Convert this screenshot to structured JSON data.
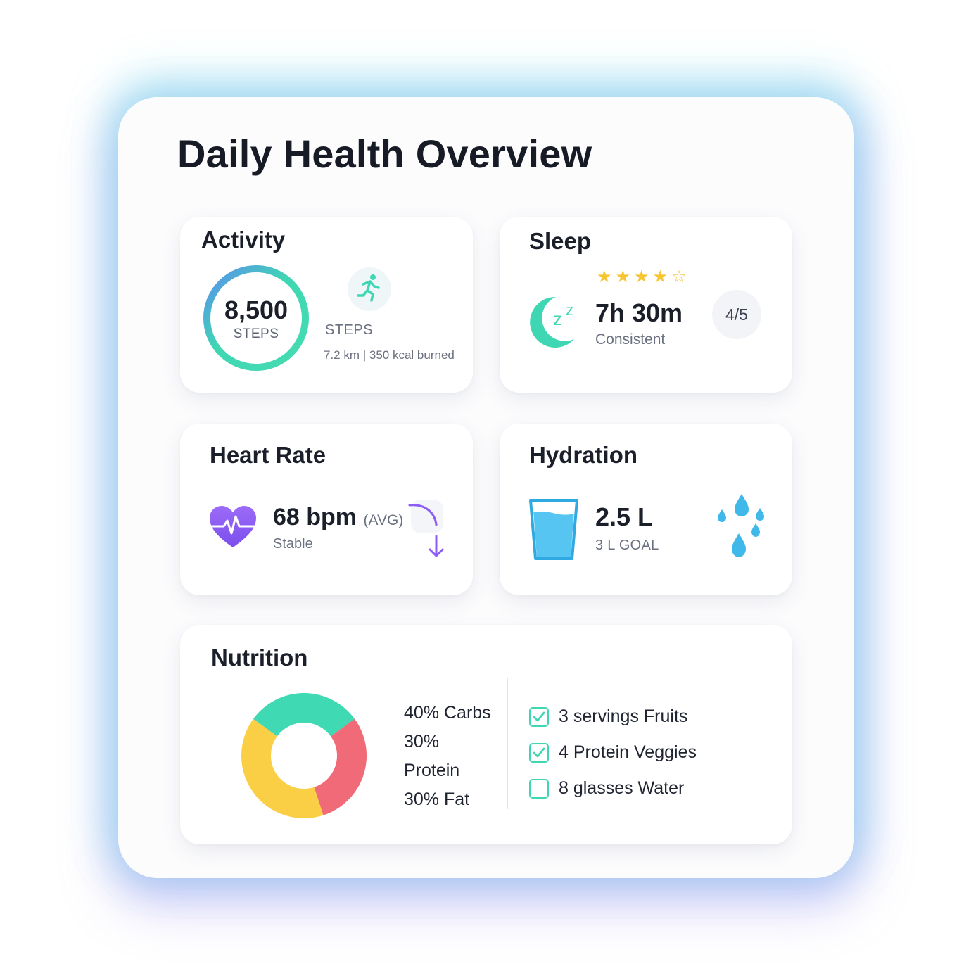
{
  "page": {
    "title": "Daily Health Overview"
  },
  "activity": {
    "title": "Activity",
    "steps_value": "8,500",
    "steps_unit": "STEPS",
    "steps_label": "STEPS",
    "meta": "7.2 km | 350 kcal burned",
    "icon": "running-person-icon"
  },
  "sleep": {
    "title": "Sleep",
    "duration": "7h 30m",
    "quality": "Consistent",
    "score": "4/5",
    "rating": 4,
    "rating_max": 5,
    "icon": "moon-zz-icon"
  },
  "heart": {
    "title": "Heart Rate",
    "value": "68 bpm",
    "avg_label": "(AVG)",
    "status": "Stable",
    "icon": "heart-pulse-icon",
    "trend_icon": "trend-down-arrow-icon"
  },
  "hydration": {
    "title": "Hydration",
    "value": "2.5 L",
    "goal": "3 L GOAL",
    "fill_fraction": 0.83,
    "icon": "water-glass-icon"
  },
  "nutrition": {
    "title": "Nutrition",
    "legend_lines": [
      "40% Carbs",
      "30%",
      "Protein",
      "30% Fat"
    ],
    "checklist": [
      {
        "label": "3 servings Fruits",
        "checked": true
      },
      {
        "label": "4 Protein Veggies",
        "checked": true
      },
      {
        "label": "8 glasses Water",
        "checked": false
      }
    ]
  },
  "colors": {
    "teal": "#3fd7b3",
    "blue": "#5b8def",
    "star": "#f7c531",
    "heart": "#8b5cf6",
    "water": "#40b9ea",
    "donut_teal": "#3fd9b4",
    "donut_yellow": "#fbcf45",
    "donut_red": "#f06a77"
  },
  "chart_data": {
    "type": "pie",
    "categories": [
      "Carbs",
      "Protein",
      "Fat"
    ],
    "values": [
      40,
      30,
      30
    ]
  }
}
